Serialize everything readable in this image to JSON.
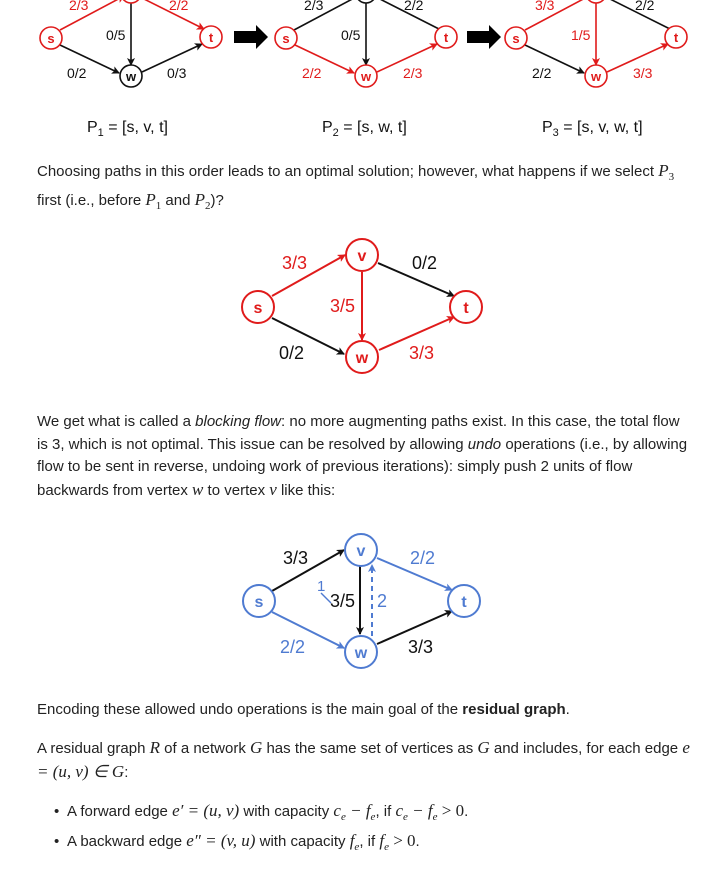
{
  "top_row": {
    "graphs": [
      {
        "sv_flow": "2/3",
        "vt_flow": "2/2",
        "vw_flow": "0/5",
        "sw_flow": "0/2",
        "wt_flow": "0/3",
        "caption": {
          "pre": "P",
          "sub": "1",
          "post": " = [s, v, t]"
        }
      },
      {
        "sv_flow": "2/3",
        "vt_flow": "2/2",
        "vw_flow": "0/5",
        "sw_flow": "2/2",
        "wt_flow": "2/3",
        "caption": {
          "pre": "P",
          "sub": "2",
          "post": " = [s, w, t]"
        }
      },
      {
        "sv_flow": "3/3",
        "vt_flow": "2/2",
        "vw_flow": "1/5",
        "sw_flow": "2/2",
        "wt_flow": "3/3",
        "caption": {
          "pre": "P",
          "sub": "3",
          "post": " = [s, v, w, t]"
        }
      }
    ],
    "node_labels": {
      "s": "s",
      "t": "t",
      "w": "w",
      "v": "v"
    }
  },
  "para1": {
    "t1": "Choosing paths in this order leads to an optimal solution; however, what happens if we select ",
    "m1": "P",
    "m1_sub": "3",
    "t2": " first (i.e., before ",
    "m2": "P",
    "m2_sub": "1",
    "t3": " and ",
    "m3": "P",
    "m3_sub": "2",
    "t4": ")?"
  },
  "middle_graph": {
    "sv_flow": "3/3",
    "vt_flow": "0/2",
    "vw_flow": "3/5",
    "sw_flow": "0/2",
    "wt_flow": "3/3",
    "nodes": {
      "s": "s",
      "v": "v",
      "w": "w",
      "t": "t"
    }
  },
  "para2": {
    "t1": "We get what is called a ",
    "em1": "blocking flow",
    "t2": ": no more augmenting paths exist. In this case, the total flow is 3, which is not optimal. This issue can be resolved by allowing ",
    "em2": "undo",
    "t3": " operations (i.e., by allowing flow to be sent in reverse, undoing work of previous iterations): simply push 2 units of flow backwards from vertex ",
    "m1": "w",
    "t4": " to vertex ",
    "m2": "v",
    "t5": " like this:"
  },
  "bottom_graph": {
    "sv_flow": "3/3",
    "vt_flow": "2/2",
    "vw_flow": "3/5",
    "vw_change": "1",
    "wv_undo": "2",
    "sw_flow": "2/2",
    "wt_flow": "3/3",
    "nodes": {
      "s": "s",
      "v": "v",
      "w": "w",
      "t": "t"
    }
  },
  "para3": {
    "t1": "Encoding these allowed undo operations is the main goal of the ",
    "bold": "residual graph",
    "t2": "."
  },
  "para4": {
    "t1": "A residual graph ",
    "m1": "R",
    "t2": " of a network ",
    "m2": "G",
    "t3": " has the same set of vertices as ",
    "m3": "G",
    "t4": " and includes, for each edge ",
    "m4": "e = (u, v) ∈ G",
    "t5": ":"
  },
  "bullets": [
    {
      "t1": "A forward edge ",
      "m1": "e′ = (u, v)",
      "t2": " with capacity ",
      "m2": "c",
      "m2_sub": "e",
      "m3": " − f",
      "m3_sub": "e",
      "t3": ", if ",
      "m4": "c",
      "m4_sub": "e",
      "m5": " − f",
      "m5_sub": "e",
      "m6": " > 0",
      "t4": "."
    },
    {
      "t1": "A backward edge ",
      "m1": "e″ = (v, u)",
      "t2": " with capacity ",
      "m2": "f",
      "m2_sub": "e",
      "t3": ", if ",
      "m3": "f",
      "m3_sub": "e",
      "m4": " > 0",
      "t4": "."
    }
  ],
  "colors": {
    "red": "#e01b1b",
    "blue": "#4f7bd1",
    "black": "#111111"
  }
}
